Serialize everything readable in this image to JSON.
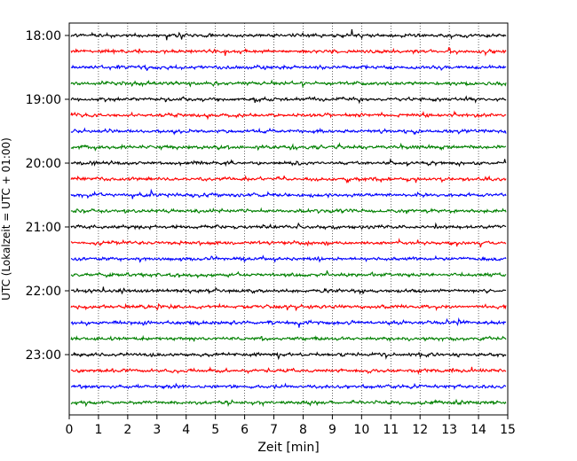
{
  "chart_data": {
    "type": "line",
    "title": "",
    "xlabel": "Zeit  [min]",
    "ylabel": "UTC (Lokalzeit = UTC + 01:00)",
    "xlim": [
      0,
      15
    ],
    "x_ticks": [
      0,
      1,
      2,
      3,
      4,
      5,
      6,
      7,
      8,
      9,
      10,
      11,
      12,
      13,
      14,
      15
    ],
    "y_tick_labels": [
      "18:00",
      "19:00",
      "20:00",
      "21:00",
      "22:00",
      "23:00"
    ],
    "grid": "vertical dotted lines at each minute",
    "row_interval_min": 15,
    "rows": [
      {
        "start": "18:00",
        "color": "#000000"
      },
      {
        "start": "18:15",
        "color": "#ff0000"
      },
      {
        "start": "18:30",
        "color": "#0000ff"
      },
      {
        "start": "18:45",
        "color": "#008000"
      },
      {
        "start": "19:00",
        "color": "#000000"
      },
      {
        "start": "19:15",
        "color": "#ff0000"
      },
      {
        "start": "19:30",
        "color": "#0000ff"
      },
      {
        "start": "19:45",
        "color": "#008000"
      },
      {
        "start": "20:00",
        "color": "#000000"
      },
      {
        "start": "20:15",
        "color": "#ff0000"
      },
      {
        "start": "20:30",
        "color": "#0000ff"
      },
      {
        "start": "20:45",
        "color": "#008000"
      },
      {
        "start": "21:00",
        "color": "#000000"
      },
      {
        "start": "21:15",
        "color": "#ff0000"
      },
      {
        "start": "21:30",
        "color": "#0000ff"
      },
      {
        "start": "21:45",
        "color": "#008000"
      },
      {
        "start": "22:00",
        "color": "#000000"
      },
      {
        "start": "22:15",
        "color": "#ff0000"
      },
      {
        "start": "22:30",
        "color": "#0000ff"
      },
      {
        "start": "22:45",
        "color": "#008000"
      },
      {
        "start": "23:00",
        "color": "#000000"
      },
      {
        "start": "23:15",
        "color": "#ff0000"
      },
      {
        "start": "23:30",
        "color": "#0000ff"
      },
      {
        "start": "23:45",
        "color": "#008000"
      }
    ]
  }
}
